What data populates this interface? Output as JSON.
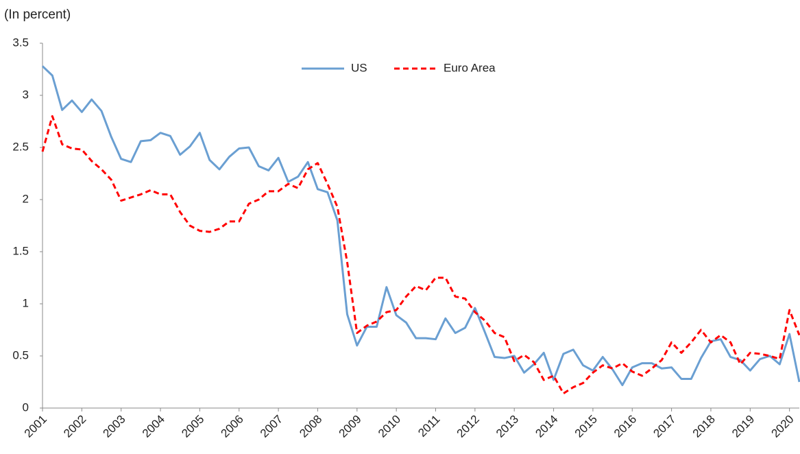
{
  "chart_data": {
    "type": "line",
    "subtitle": "(In percent)",
    "x": [
      2001,
      2001.25,
      2001.5,
      2001.75,
      2002,
      2002.25,
      2002.5,
      2002.75,
      2003,
      2003.25,
      2003.5,
      2003.75,
      2004,
      2004.25,
      2004.5,
      2004.75,
      2005,
      2005.25,
      2005.5,
      2005.75,
      2006,
      2006.25,
      2006.5,
      2006.75,
      2007,
      2007.25,
      2007.5,
      2007.75,
      2008,
      2008.25,
      2008.5,
      2008.75,
      2009,
      2009.25,
      2009.5,
      2009.75,
      2010,
      2010.25,
      2010.5,
      2010.75,
      2011,
      2011.25,
      2011.5,
      2011.75,
      2012,
      2012.25,
      2012.5,
      2012.75,
      2013,
      2013.25,
      2013.5,
      2013.75,
      2014,
      2014.25,
      2014.5,
      2014.75,
      2015,
      2015.25,
      2015.5,
      2015.75,
      2016,
      2016.25,
      2016.5,
      2016.75,
      2017,
      2017.25,
      2017.5,
      2017.75,
      2018,
      2018.25,
      2018.5,
      2018.75,
      2019,
      2019.25,
      2019.5,
      2019.75,
      2020,
      2020.25
    ],
    "series": [
      {
        "name": "US",
        "color": "#6a9fd2",
        "dash": false,
        "values": [
          3.28,
          3.19,
          2.86,
          2.95,
          2.84,
          2.96,
          2.85,
          2.6,
          2.39,
          2.36,
          2.56,
          2.57,
          2.64,
          2.61,
          2.43,
          2.51,
          2.64,
          2.38,
          2.29,
          2.41,
          2.49,
          2.5,
          2.32,
          2.28,
          2.4,
          2.17,
          2.22,
          2.36,
          2.1,
          2.07,
          1.8,
          0.9,
          0.6,
          0.78,
          0.78,
          1.16,
          0.89,
          0.82,
          0.67,
          0.67,
          0.66,
          0.86,
          0.72,
          0.77,
          0.96,
          0.73,
          0.49,
          0.48,
          0.5,
          0.34,
          0.42,
          0.53,
          0.27,
          0.52,
          0.56,
          0.41,
          0.36,
          0.49,
          0.37,
          0.22,
          0.39,
          0.43,
          0.43,
          0.38,
          0.39,
          0.28,
          0.28,
          0.48,
          0.64,
          0.66,
          0.49,
          0.46,
          0.36,
          0.47,
          0.5,
          0.42,
          0.71,
          0.25
        ]
      },
      {
        "name": "Euro Area",
        "color": "#ff0000",
        "dash": true,
        "values": [
          2.46,
          2.8,
          2.53,
          2.49,
          2.48,
          2.37,
          2.29,
          2.19,
          1.99,
          2.02,
          2.05,
          2.09,
          2.05,
          2.05,
          1.88,
          1.75,
          1.7,
          1.69,
          1.72,
          1.79,
          1.79,
          1.96,
          2.0,
          2.08,
          2.08,
          2.15,
          2.11,
          2.29,
          2.35,
          2.15,
          1.93,
          1.4,
          0.72,
          0.79,
          0.83,
          0.92,
          0.94,
          1.07,
          1.17,
          1.13,
          1.25,
          1.25,
          1.07,
          1.05,
          0.92,
          0.84,
          0.72,
          0.68,
          0.45,
          0.51,
          0.44,
          0.27,
          0.31,
          0.14,
          0.2,
          0.24,
          0.34,
          0.41,
          0.38,
          0.43,
          0.35,
          0.31,
          0.38,
          0.46,
          0.63,
          0.53,
          0.63,
          0.75,
          0.63,
          0.7,
          0.63,
          0.42,
          0.53,
          0.52,
          0.5,
          0.47,
          0.94,
          0.7
        ]
      }
    ],
    "xlim": [
      2001,
      2020.25
    ],
    "xticks": [
      2001,
      2002,
      2003,
      2004,
      2005,
      2006,
      2007,
      2008,
      2009,
      2010,
      2011,
      2012,
      2013,
      2014,
      2015,
      2016,
      2017,
      2018,
      2019,
      2020
    ],
    "ylim": [
      0,
      3.5
    ],
    "yticks": [
      0,
      0.5,
      1,
      1.5,
      2,
      2.5,
      3,
      3.5
    ],
    "grid": false,
    "legend": "top"
  }
}
